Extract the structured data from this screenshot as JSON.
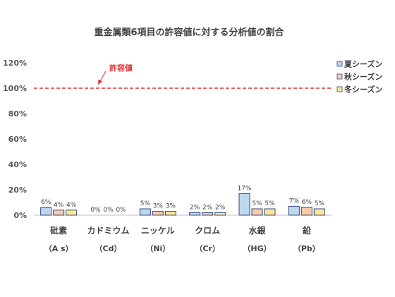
{
  "chart_data": {
    "type": "bar",
    "title": "重金属類6項目の許容値に対する分析値の割合",
    "categories": [
      "砒素",
      "カドミウム",
      "ニッケル",
      "クロム",
      "水銀",
      "鉛"
    ],
    "category_sublabels": [
      "（A s）",
      "（Cd）",
      "（Ni）",
      "（Cr）",
      "（HG）",
      "（Pb）"
    ],
    "series": [
      {
        "name": "夏シーズン",
        "color": "#bdd7ee",
        "values": [
          6,
          0,
          5,
          2,
          17,
          7
        ],
        "labels": [
          "6%",
          "0%",
          "5%",
          "2%",
          "17%",
          "7%"
        ]
      },
      {
        "name": "秋シーズン",
        "color": "#f8cbad",
        "values": [
          4,
          0,
          3,
          2,
          5,
          6
        ],
        "labels": [
          "4%",
          "0%",
          "3%",
          "2%",
          "5%",
          "6%"
        ]
      },
      {
        "name": "冬シーズン",
        "color": "#ffe699",
        "values": [
          4,
          0,
          3,
          2,
          5,
          5
        ],
        "labels": [
          "4%",
          "0%",
          "3%",
          "2%",
          "5%",
          "5%"
        ]
      }
    ],
    "yticks": [
      "0%",
      "20%",
      "40%",
      "60%",
      "80%",
      "100%",
      "120%"
    ],
    "ylim": [
      0,
      120
    ],
    "reference_line": {
      "value": 100,
      "label": "許容値",
      "color": "#e03030"
    },
    "legend_position": "right",
    "grid": false,
    "bar_outline_color": "#2f4b7c"
  }
}
